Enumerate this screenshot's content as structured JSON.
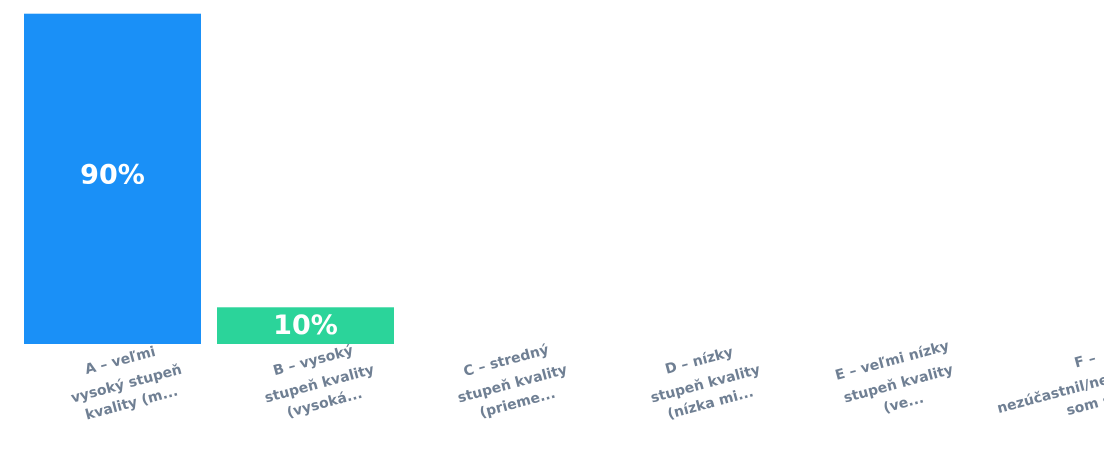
{
  "chart_data": {
    "type": "bar",
    "title": "",
    "xlabel": "",
    "ylabel": "",
    "ylim": [
      0,
      100
    ],
    "grid": false,
    "legend": "none",
    "categories": [
      [
        "A – veľmi",
        "vysoký stupeň",
        "kvality (m..."
      ],
      [
        "B – vysoký",
        "stupeň kvality",
        "(vysoká..."
      ],
      [
        "C – stredný",
        "stupeň kvality",
        "(prieme..."
      ],
      [
        "D – nízky",
        "stupeň kvality",
        "(nízka mi..."
      ],
      [
        "E – veľmi nízky",
        "stupeň kvality",
        "(ve..."
      ],
      [
        "F –",
        "nezúčastnil/nezúčastnila",
        "som s..."
      ]
    ],
    "values": [
      90,
      10,
      0,
      0,
      0,
      0
    ],
    "value_labels": [
      "90%",
      "10%",
      "",
      "",
      "",
      ""
    ],
    "colors": [
      "#1a90f7",
      "#2bd49a",
      "#ffd23f",
      "#ff8a3d",
      "#f2546b",
      "#8e7cc3"
    ]
  }
}
